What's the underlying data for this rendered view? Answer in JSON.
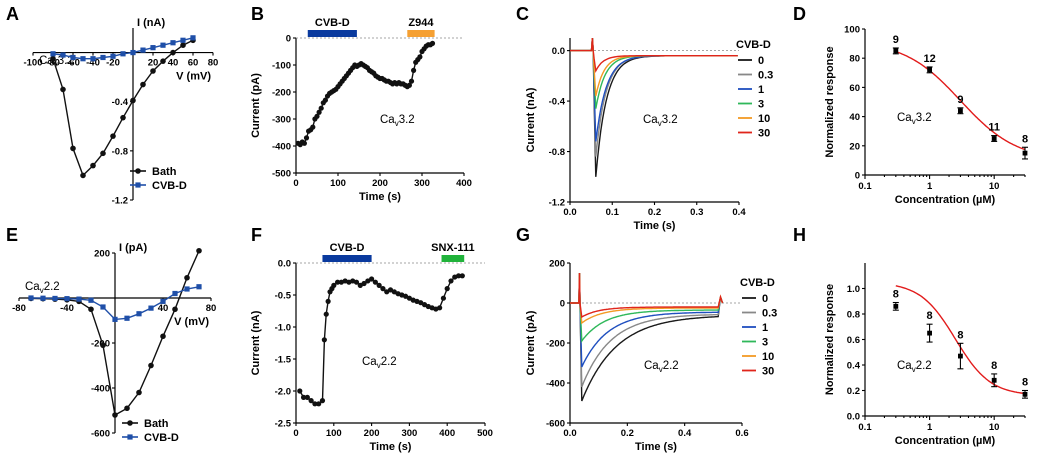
{
  "colors": {
    "black": "#111111",
    "blue": "#1f4fa8",
    "bar_blue": "#0a3a9e",
    "bar_orange": "#f5a033",
    "bar_green": "#21b33b",
    "trace": {
      "0": "#1a1a1a",
      "0.3": "#888888",
      "1": "#1f4fbf",
      "3": "#2fb85a",
      "10": "#f39a25",
      "30": "#e0251b"
    },
    "fit_red": "#e21b1b"
  },
  "chart_data": [
    {
      "id": "A",
      "type": "line",
      "panel": "A",
      "cell_label": {
        "main": "Ca",
        "sub": "v",
        "suffix": "3.2"
      },
      "xlabel": "V (mV)",
      "ylabel": "I (nA)",
      "xlim": [
        -100,
        80
      ],
      "ylim": [
        -1.2,
        0.2
      ],
      "xticks": [
        -100,
        -80,
        -60,
        -40,
        -20,
        20,
        40,
        60,
        80
      ],
      "yticks": [
        -1.2,
        -0.8,
        -0.4
      ],
      "series": [
        {
          "name": "Bath",
          "color": "#111111",
          "x": [
            -80,
            -70,
            -60,
            -50,
            -40,
            -30,
            -20,
            -10,
            0,
            10,
            20,
            30,
            40,
            50,
            60
          ],
          "y": [
            -0.05,
            -0.3,
            -0.78,
            -1.0,
            -0.92,
            -0.82,
            -0.68,
            -0.53,
            -0.39,
            -0.26,
            -0.15,
            -0.07,
            0.0,
            0.06,
            0.1
          ]
        },
        {
          "name": "CVB-D",
          "color": "#1f4fa8",
          "x": [
            -80,
            -70,
            -60,
            -50,
            -40,
            -30,
            -20,
            -10,
            0,
            10,
            20,
            30,
            40,
            50,
            60
          ],
          "y": [
            -0.01,
            -0.02,
            -0.04,
            -0.05,
            -0.05,
            -0.04,
            -0.03,
            -0.01,
            0.0,
            0.02,
            0.04,
            0.06,
            0.08,
            0.1,
            0.12
          ]
        }
      ]
    },
    {
      "id": "B",
      "type": "scatter",
      "panel": "B",
      "cell_label": {
        "main": "Ca",
        "sub": "v",
        "suffix": "3.2"
      },
      "xlabel": "Time (s)",
      "ylabel": "Current (pA)",
      "xlim": [
        0,
        400
      ],
      "ylim": [
        -500,
        0
      ],
      "xticks": [
        0,
        100,
        200,
        300,
        400
      ],
      "yticks": [
        0,
        -100,
        -200,
        -300,
        -400,
        -500
      ],
      "bars": [
        {
          "label": "CVB-D",
          "start": 28,
          "end": 145,
          "color": "#0a3a9e"
        },
        {
          "label": "Z944",
          "start": 265,
          "end": 330,
          "color": "#f5a033"
        }
      ],
      "x": [
        5,
        10,
        15,
        20,
        25,
        30,
        35,
        40,
        45,
        50,
        55,
        60,
        65,
        70,
        75,
        80,
        85,
        90,
        95,
        100,
        105,
        110,
        115,
        120,
        125,
        130,
        135,
        140,
        145,
        150,
        155,
        160,
        165,
        170,
        175,
        180,
        185,
        190,
        195,
        200,
        205,
        210,
        215,
        220,
        225,
        230,
        235,
        240,
        245,
        250,
        255,
        260,
        265,
        270,
        275,
        280,
        285,
        290,
        295,
        300,
        305,
        310,
        315,
        320,
        325
      ],
      "y": [
        -390,
        -395,
        -385,
        -390,
        -370,
        -345,
        -340,
        -330,
        -300,
        -290,
        -275,
        -260,
        -240,
        -230,
        -215,
        -205,
        -200,
        -195,
        -190,
        -180,
        -170,
        -160,
        -150,
        -140,
        -130,
        -120,
        -110,
        -100,
        -105,
        -100,
        -95,
        -100,
        -105,
        -110,
        -120,
        -125,
        -130,
        -140,
        -145,
        -150,
        -150,
        -155,
        -160,
        -160,
        -165,
        -170,
        -165,
        -170,
        -165,
        -170,
        -170,
        -175,
        -180,
        -175,
        -160,
        -120,
        -90,
        -80,
        -70,
        -50,
        -40,
        -30,
        -25,
        -25,
        -20
      ]
    },
    {
      "id": "C",
      "type": "line",
      "panel": "C",
      "cell_label": {
        "main": "Ca",
        "sub": "v",
        "suffix": "3.2"
      },
      "xlabel": "Time (s)",
      "ylabel": "Current (nA)",
      "xlim": [
        0,
        0.4
      ],
      "ylim": [
        -1.2,
        0.1
      ],
      "xticks": [
        0.0,
        0.1,
        0.2,
        0.3,
        0.4
      ],
      "yticks": [
        0.0,
        -0.4,
        -0.8,
        -1.2
      ],
      "legend_title": "CVB-D",
      "series": [
        {
          "name": "0",
          "peak": -1.0,
          "tau": 0.025
        },
        {
          "name": "0.3",
          "peak": -0.84,
          "tau": 0.024
        },
        {
          "name": "1",
          "peak": -0.72,
          "tau": 0.025
        },
        {
          "name": "3",
          "peak": -0.46,
          "tau": 0.022
        },
        {
          "name": "10",
          "peak": -0.36,
          "tau": 0.02
        },
        {
          "name": "30",
          "peak": -0.16,
          "tau": 0.018
        }
      ]
    },
    {
      "id": "D",
      "type": "scatter",
      "panel": "D",
      "cell_label": {
        "main": "Ca",
        "sub": "v",
        "suffix": "3.2"
      },
      "xlabel": "Concentration (µM)",
      "ylabel": "Normalized response",
      "xscale": "log",
      "xlim": [
        0.1,
        30
      ],
      "ylim": [
        0,
        100
      ],
      "xticks": [
        0.1,
        1,
        10
      ],
      "yticks": [
        0,
        20,
        40,
        60,
        80,
        100
      ],
      "x": [
        0.3,
        1,
        3,
        10,
        30
      ],
      "y": [
        85,
        72,
        44,
        25,
        15
      ],
      "err": [
        2,
        2,
        2,
        2,
        4
      ],
      "n": [
        "9",
        "12",
        "9",
        "11",
        "8"
      ],
      "fit": {
        "top": 92,
        "bottom": 10,
        "ic50": 3.0,
        "hill": 1.0
      }
    },
    {
      "id": "E",
      "type": "line",
      "panel": "E",
      "cell_label": {
        "main": "Ca",
        "sub": "v",
        "suffix": "2.2"
      },
      "xlabel": "V (mV)",
      "ylabel": "I (pA)",
      "xlim": [
        -80,
        80
      ],
      "ylim": [
        -600,
        200
      ],
      "xticks": [
        -80,
        -40,
        40,
        80
      ],
      "yticks": [
        200,
        -200,
        -400,
        -600
      ],
      "series": [
        {
          "name": "Bath",
          "color": "#111111",
          "x": [
            -70,
            -60,
            -50,
            -40,
            -30,
            -20,
            -10,
            0,
            10,
            20,
            30,
            40,
            50,
            60,
            70
          ],
          "y": [
            -2,
            -3,
            -5,
            -8,
            -15,
            -50,
            -210,
            -520,
            -490,
            -420,
            -300,
            -170,
            -50,
            90,
            210
          ]
        },
        {
          "name": "CVB-D",
          "color": "#1f4fa8",
          "x": [
            -70,
            -60,
            -50,
            -40,
            -30,
            -20,
            -10,
            0,
            10,
            20,
            30,
            40,
            50,
            60,
            70
          ],
          "y": [
            0,
            -1,
            -2,
            -3,
            -5,
            -10,
            -40,
            -95,
            -90,
            -70,
            -45,
            -15,
            20,
            40,
            50
          ]
        }
      ]
    },
    {
      "id": "F",
      "type": "scatter",
      "panel": "F",
      "cell_label": {
        "main": "Ca",
        "sub": "v",
        "suffix": "2.2"
      },
      "xlabel": "Time (s)",
      "ylabel": "Current (nA)",
      "xlim": [
        0,
        500
      ],
      "ylim": [
        -2.5,
        0
      ],
      "xticks": [
        0,
        100,
        200,
        300,
        400,
        500
      ],
      "yticks": [
        0.0,
        -0.5,
        -1.0,
        -1.5,
        -2.0,
        -2.5
      ],
      "bars": [
        {
          "label": "CVB-D",
          "start": 70,
          "end": 200,
          "color": "#0a3a9e"
        },
        {
          "label": "SNX-111",
          "start": 385,
          "end": 445,
          "color": "#21b33b"
        }
      ],
      "x": [
        10,
        20,
        30,
        40,
        50,
        60,
        70,
        75,
        80,
        85,
        90,
        95,
        100,
        110,
        120,
        130,
        140,
        150,
        160,
        170,
        180,
        190,
        200,
        210,
        220,
        230,
        240,
        250,
        260,
        270,
        280,
        290,
        300,
        310,
        320,
        330,
        340,
        350,
        360,
        370,
        380,
        390,
        400,
        410,
        420,
        430,
        440
      ],
      "y": [
        -2.0,
        -2.1,
        -2.1,
        -2.15,
        -2.2,
        -2.2,
        -2.15,
        -1.2,
        -0.8,
        -0.6,
        -0.45,
        -0.4,
        -0.35,
        -0.3,
        -0.3,
        -0.28,
        -0.3,
        -0.28,
        -0.3,
        -0.35,
        -0.32,
        -0.28,
        -0.25,
        -0.3,
        -0.35,
        -0.4,
        -0.45,
        -0.42,
        -0.45,
        -0.48,
        -0.5,
        -0.52,
        -0.55,
        -0.58,
        -0.6,
        -0.62,
        -0.65,
        -0.68,
        -0.7,
        -0.72,
        -0.7,
        -0.55,
        -0.4,
        -0.28,
        -0.22,
        -0.2,
        -0.2
      ]
    },
    {
      "id": "G",
      "type": "line",
      "panel": "G",
      "cell_label": {
        "main": "Ca",
        "sub": "v",
        "suffix": "2.2"
      },
      "xlabel": "Time (s)",
      "ylabel": "Current (pA)",
      "xlim": [
        0,
        0.6
      ],
      "ylim": [
        -600,
        200
      ],
      "xticks": [
        0.0,
        0.2,
        0.4,
        0.6
      ],
      "yticks": [
        200,
        0,
        -200,
        -400,
        -600
      ],
      "legend_title": "CVB-D",
      "series": [
        {
          "name": "0",
          "peak": -490,
          "tau": 0.12,
          "base": -60
        },
        {
          "name": "0.3",
          "peak": -420,
          "tau": 0.1,
          "base": -55
        },
        {
          "name": "1",
          "peak": -320,
          "tau": 0.09,
          "base": -45
        },
        {
          "name": "3",
          "peak": -190,
          "tau": 0.08,
          "base": -35
        },
        {
          "name": "10",
          "peak": -100,
          "tau": 0.07,
          "base": -25
        },
        {
          "name": "30",
          "peak": -70,
          "tau": 0.06,
          "base": -20
        }
      ]
    },
    {
      "id": "H",
      "type": "scatter",
      "panel": "H",
      "cell_label": {
        "main": "Ca",
        "sub": "v",
        "suffix": "2.2"
      },
      "xlabel": "Concentration (µM)",
      "ylabel": "Normalized response",
      "xscale": "log",
      "xlim": [
        0.1,
        30
      ],
      "ylim": [
        0,
        1.2
      ],
      "xticks": [
        0.1,
        1,
        10
      ],
      "yticks": [
        0.0,
        0.2,
        0.4,
        0.6,
        0.8,
        1.0
      ],
      "x": [
        0.3,
        1,
        3,
        10,
        30
      ],
      "y": [
        0.86,
        0.65,
        0.47,
        0.28,
        0.17
      ],
      "err": [
        0.03,
        0.07,
        0.1,
        0.05,
        0.03
      ],
      "n": [
        "8",
        "8",
        "8",
        "8",
        "8"
      ],
      "fit": {
        "top": 1.05,
        "bottom": 0.16,
        "ic50": 2.5,
        "hill": 1.6
      }
    }
  ]
}
